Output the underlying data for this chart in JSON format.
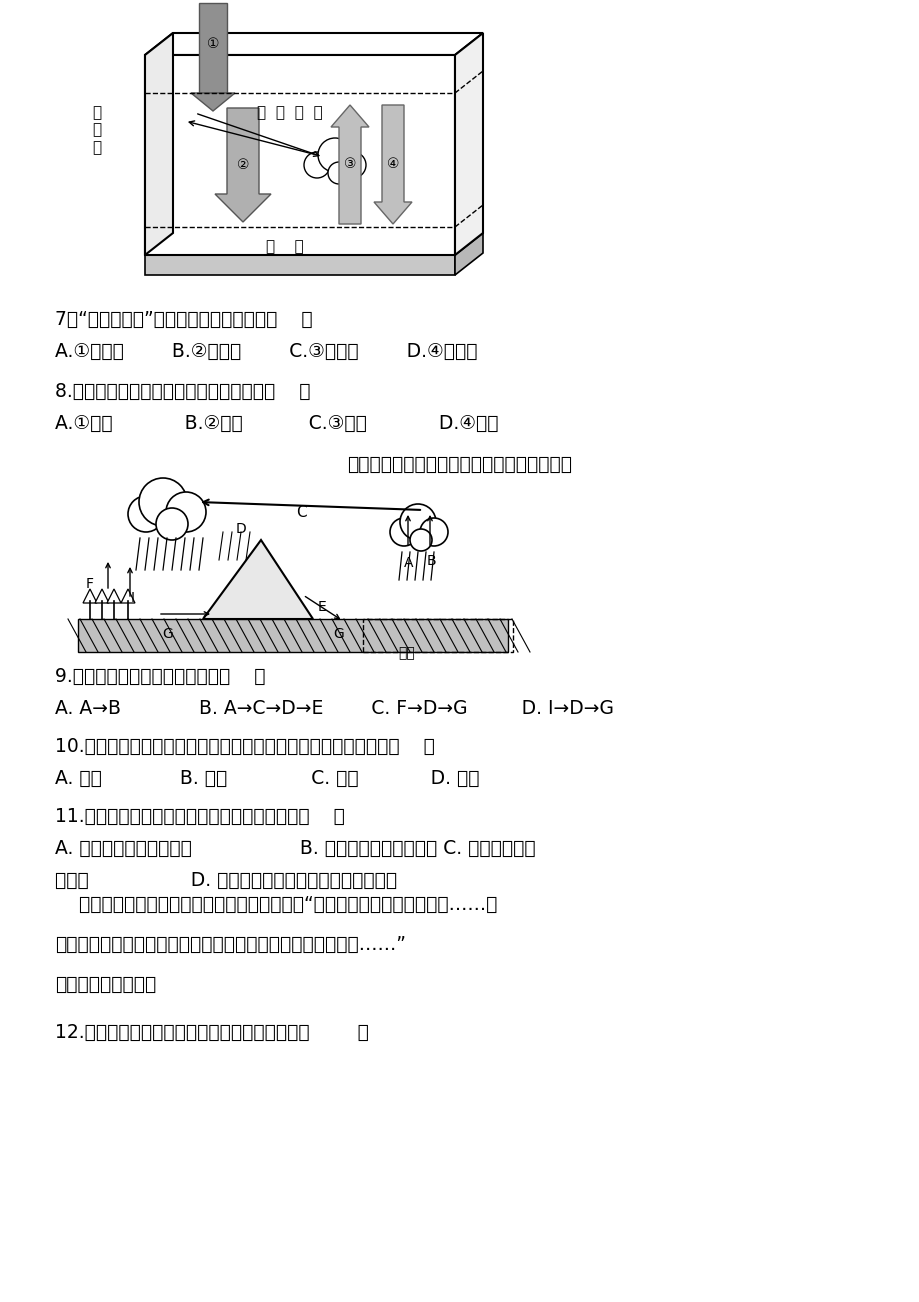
{
  "background_color": "#ffffff",
  "page_width": 9.2,
  "page_height": 13.02,
  "q7_text": "7．“露水起晴天”主要是由于晴朗的夜晦（    ）",
  "q7_opts": "A.①辐射强        B.②辐射强        C.③辐射弱        D.④辐射弱",
  "q8_text": "8.发展低碳经济，倡导低碳生活可以导致（    ）",
  "q8_opts": "A.①增强            B.②减弱           C.③增强            D.④减弱",
  "wc_caption": "下图为水循环示意图。读图，完成下面小题。",
  "q9_text": "9.图中组成海陆间循环的组合是（    ）",
  "q9_opts": "A. A→B             B. A→C→D→E        C. F→D→G         D. I→D→G",
  "q10_text": "10.图中如果表示我国东南沿海地区，海陆间循环最活跃的季节是（    ）",
  "q10_opts": "A. 春季             B. 夏季              C. 秋季            D. 冬季",
  "q11_text": "11.下列有关水循环地理意义的叙述，错误的是（    ）",
  "q11_opt_a": "A. 使陆地水资源不断更新",
  "q11_opt_bc": "B. 维持全球水的动态平衡 C. 不断塑造着地",
  "q11_opt_tail": "表形态                 D. 加剧不同纬度热量收支不平衡的矛盾",
  "passage_line1": "    《水浒传》中有一段对天气的经典描述如下：“是日，日无晶光，崔风乱吼……其",
  "passage_line2": "时正是仲冬天气，连日大风，天地变色，马蹄冻合，铁甲如冰……”",
  "passage_line3": "据此完成下面小题。",
  "q12_text": "12.材料中描述的天气系统和下列图示相符的是（        ）",
  "daqijie": "大  气  上  界",
  "daqiceng": "大\n气\n层",
  "dimian": "地    面",
  "haiyang": "海洋"
}
